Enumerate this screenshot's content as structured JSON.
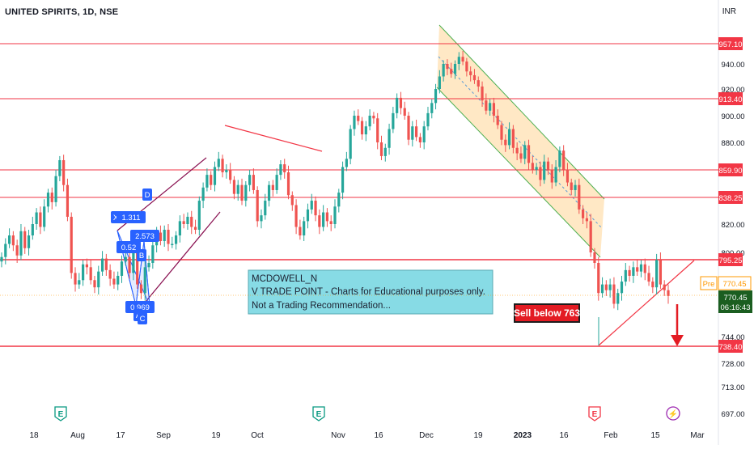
{
  "header": {
    "symbol_title": "UNITED SPIRITS, 1D, NSE",
    "currency": "INR"
  },
  "colors": {
    "up": "#26a69a",
    "down": "#ef5350",
    "level_line": "#f23645",
    "channel_fill": "#ffe0b2",
    "channel_border": "#4caf50",
    "note_bg": "#87dbe5",
    "pattern_blue": "#2962ff",
    "sell_bg": "#e31b23",
    "last_price_bg": "#1b5e20",
    "pre_bg": "#ff9800"
  },
  "axis": {
    "y_ticks": [
      "940.00",
      "920.00",
      "900.00",
      "880.00",
      "820.00",
      "800.00",
      "744.00",
      "728.00",
      "713.00",
      "697.00"
    ],
    "x_ticks": [
      "18",
      "Aug",
      "17",
      "Sep",
      "19",
      "Oct",
      "Nov",
      "16",
      "Dec",
      "19",
      "2023",
      "16",
      "Feb",
      "15",
      "Mar"
    ]
  },
  "price_labels": {
    "levels": [
      "957.10",
      "913.40",
      "859.90",
      "838.25",
      "795.25",
      "738.40"
    ],
    "pre_tag": "Pre",
    "pre_value": "770.45",
    "last_price": "770.45",
    "countdown": "06:16:43"
  },
  "annotations": {
    "note_lines": [
      "MCDOWELL_N",
      "V TRADE POINT - Charts for Educational purposes only.",
      "Not a Trading Recommendation..."
    ],
    "sell_label": "Sell below 763",
    "pattern_labels": [
      "D",
      "X",
      "1.311",
      "2.573",
      "0.52",
      "B",
      "0.969",
      "A",
      "C"
    ]
  },
  "event_markers": [
    "E",
    "E",
    "E",
    "⚡"
  ],
  "chart_data": {
    "type": "candlestick",
    "title": "UNITED SPIRITS, 1D, NSE",
    "unit": "INR",
    "x": [
      "18",
      "Aug",
      "17",
      "Sep",
      "19",
      "Oct",
      "Nov",
      "16",
      "Dec",
      "19",
      "2023",
      "16",
      "Feb",
      "15",
      "Mar"
    ],
    "ylim": [
      690,
      975
    ],
    "horizontal_levels": [
      957.1,
      913.4,
      859.9,
      838.25,
      795.25,
      738.4
    ],
    "last_price": 770.45,
    "sell_trigger": 763,
    "closes": [
      797,
      806,
      812,
      805,
      798,
      815,
      803,
      812,
      820,
      828,
      818,
      832,
      842,
      835,
      855,
      867,
      848,
      825,
      786,
      778,
      781,
      792,
      790,
      781,
      776,
      787,
      796,
      788,
      782,
      778,
      784,
      794,
      797,
      786,
      808,
      778,
      772,
      790,
      793,
      805,
      814,
      808,
      816,
      806,
      806,
      812,
      822,
      820,
      825,
      818,
      816,
      836,
      846,
      856,
      848,
      862,
      868,
      858,
      860,
      852,
      841,
      848,
      836,
      848,
      856,
      844,
      822,
      826,
      836,
      848,
      844,
      856,
      864,
      858,
      840,
      833,
      818,
      812,
      822,
      830,
      836,
      826,
      818,
      828,
      822,
      820,
      832,
      842,
      862,
      868,
      890,
      900,
      896,
      886,
      892,
      900,
      898,
      880,
      870,
      876,
      890,
      902,
      914,
      906,
      900,
      882,
      892,
      884,
      880,
      892,
      902,
      910,
      920,
      930,
      940,
      936,
      932,
      940,
      946,
      942,
      934,
      931,
      927,
      922,
      912,
      904,
      910,
      900,
      893,
      882,
      878,
      890,
      876,
      872,
      868,
      878,
      865,
      860,
      862,
      852,
      866,
      860,
      850,
      862,
      874,
      860,
      850,
      844,
      848,
      830,
      824,
      822,
      800,
      793,
      772,
      778,
      774,
      778,
      765,
      772,
      780,
      788,
      784,
      790,
      787,
      792,
      786,
      780,
      776,
      795,
      778,
      774,
      770
    ]
  }
}
